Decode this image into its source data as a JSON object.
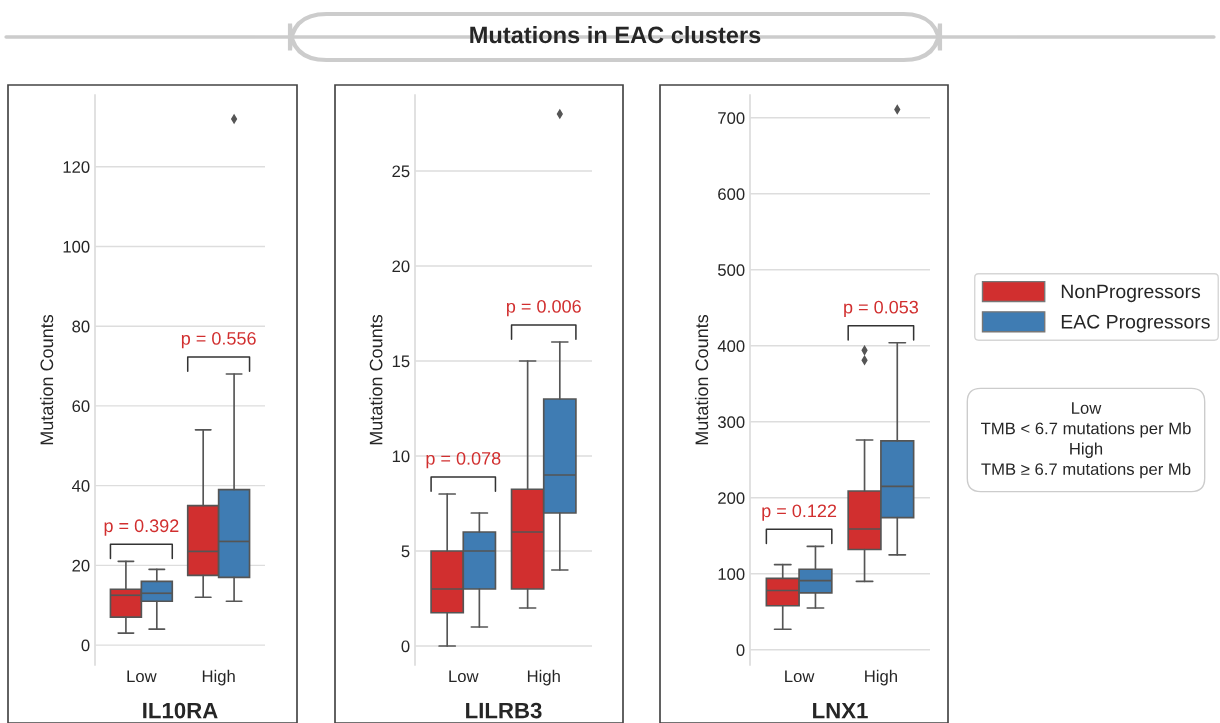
{
  "chart_data": [
    {
      "type": "box",
      "xlabel": "IL10RA",
      "ylabel": "Mutation Counts",
      "categories": [
        "Low",
        "High"
      ],
      "ylim": [
        -5,
        138
      ],
      "yticks": [
        0,
        20,
        40,
        60,
        80,
        100,
        120
      ],
      "grid": "y",
      "legend": "right",
      "series": [
        {
          "name": "NonProgressors",
          "color": "#d12f2f",
          "boxes": [
            {
              "low": 3,
              "q1": 7,
              "median": 12.5,
              "q3": 14,
              "high": 21
            },
            {
              "low": 12,
              "q1": 17.5,
              "median": 23.5,
              "q3": 35,
              "high": 54
            }
          ]
        },
        {
          "name": "EAC Progressors",
          "color": "#3f7cb3",
          "boxes": [
            {
              "low": 4,
              "q1": 11,
              "median": 13,
              "q3": 16,
              "high": 19
            },
            {
              "low": 11,
              "q1": 17,
              "median": 26,
              "q3": 39,
              "high": 68,
              "outliers": [
                132
              ]
            }
          ]
        }
      ],
      "annotations": [
        "p = 0.392",
        "p = 0.556"
      ]
    },
    {
      "type": "box",
      "title": "Mutations in EAC clusters",
      "xlabel": "LILRB3",
      "ylabel": "Mutation Counts",
      "categories": [
        "Low",
        "High"
      ],
      "ylim": [
        -1,
        29
      ],
      "yticks": [
        0,
        5,
        10,
        15,
        20,
        25
      ],
      "grid": "y",
      "legend": "right",
      "series": [
        {
          "name": "NonProgressors",
          "color": "#d12f2f",
          "boxes": [
            {
              "low": 0,
              "q1": 1.75,
              "median": 3,
              "q3": 5,
              "high": 8
            },
            {
              "low": 2,
              "q1": 3,
              "median": 6,
              "q3": 8.25,
              "high": 15
            }
          ]
        },
        {
          "name": "EAC Progressors",
          "color": "#3f7cb3",
          "boxes": [
            {
              "low": 1,
              "q1": 3,
              "median": 5,
              "q3": 6,
              "high": 7
            },
            {
              "low": 4,
              "q1": 7,
              "median": 9,
              "q3": 13,
              "high": 16,
              "outliers": [
                28
              ]
            }
          ]
        }
      ],
      "annotations": [
        "p = 0.078",
        "p = 0.006"
      ]
    },
    {
      "type": "box",
      "xlabel": "LNX1",
      "ylabel": "Mutation Counts",
      "categories": [
        "Low",
        "High"
      ],
      "ylim": [
        -20,
        730
      ],
      "yticks": [
        0,
        100,
        200,
        300,
        400,
        500,
        600,
        700
      ],
      "grid": "y",
      "legend": "right",
      "series": [
        {
          "name": "NonProgressors",
          "color": "#d12f2f",
          "boxes": [
            {
              "low": 27,
              "q1": 58,
              "median": 78,
              "q3": 94,
              "high": 112
            },
            {
              "low": 90,
              "q1": 132,
              "median": 159,
              "q3": 209,
              "high": 276,
              "outliers": [
                381,
                394
              ]
            }
          ]
        },
        {
          "name": "EAC Progressors",
          "color": "#3f7cb3",
          "boxes": [
            {
              "low": 55,
              "q1": 75,
              "median": 91,
              "q3": 106,
              "high": 136
            },
            {
              "low": 125,
              "q1": 174,
              "median": 215,
              "q3": 275,
              "high": 404,
              "outliers": [
                711
              ]
            }
          ]
        }
      ],
      "annotations": [
        "p = 0.122",
        "p = 0.053",
        "Low\nTMB < 6.7 mutations per Mb\nHigh\nTMB ≥ 6.7 mutations per Mb"
      ]
    }
  ]
}
